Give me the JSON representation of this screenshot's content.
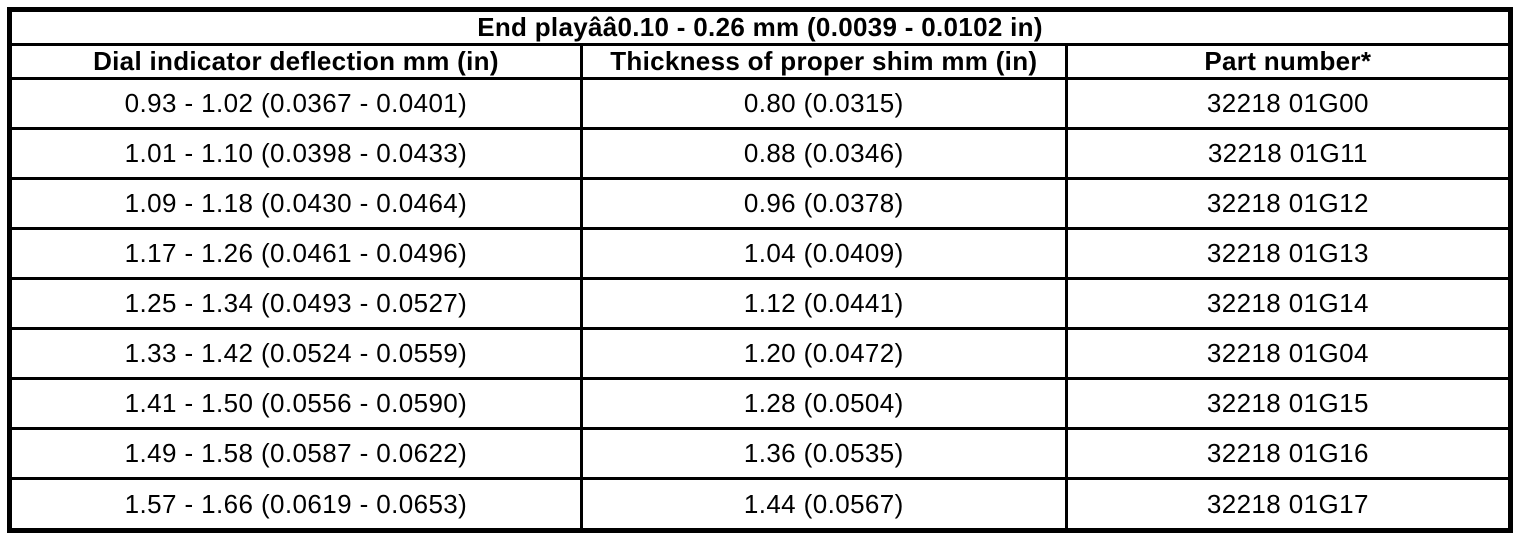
{
  "table": {
    "title": "End playââ0.10 - 0.26 mm (0.0039 - 0.0102 in)",
    "columns": [
      "Dial indicator deflection mm (in)",
      "Thickness of proper shim mm (in)",
      "Part number*"
    ],
    "rows": [
      {
        "deflection": "0.93 - 1.02 (0.0367 - 0.0401)",
        "shim": "0.80 (0.0315)",
        "part": "32218 01G00"
      },
      {
        "deflection": "1.01 - 1.10 (0.0398 - 0.0433)",
        "shim": "0.88 (0.0346)",
        "part": "32218 01G11"
      },
      {
        "deflection": "1.09 - 1.18 (0.0430 - 0.0464)",
        "shim": "0.96 (0.0378)",
        "part": "32218 01G12"
      },
      {
        "deflection": "1.17 - 1.26 (0.0461 - 0.0496)",
        "shim": "1.04 (0.0409)",
        "part": "32218 01G13"
      },
      {
        "deflection": "1.25 - 1.34 (0.0493 - 0.0527)",
        "shim": "1.12 (0.0441)",
        "part": "32218 01G14"
      },
      {
        "deflection": "1.33 - 1.42 (0.0524 - 0.0559)",
        "shim": "1.20 (0.0472)",
        "part": "32218 01G04"
      },
      {
        "deflection": "1.41 - 1.50 (0.0556 - 0.0590)",
        "shim": "1.28 (0.0504)",
        "part": "32218 01G15"
      },
      {
        "deflection": "1.49 - 1.58 (0.0587 - 0.0622)",
        "shim": "1.36 (0.0535)",
        "part": "32218 01G16"
      },
      {
        "deflection": "1.57 - 1.66 (0.0619 - 0.0653)",
        "shim": "1.44 (0.0567)",
        "part": "32218 01G17"
      }
    ]
  },
  "colors": {
    "border": "#000000",
    "text": "#000000",
    "background": "#ffffff"
  }
}
